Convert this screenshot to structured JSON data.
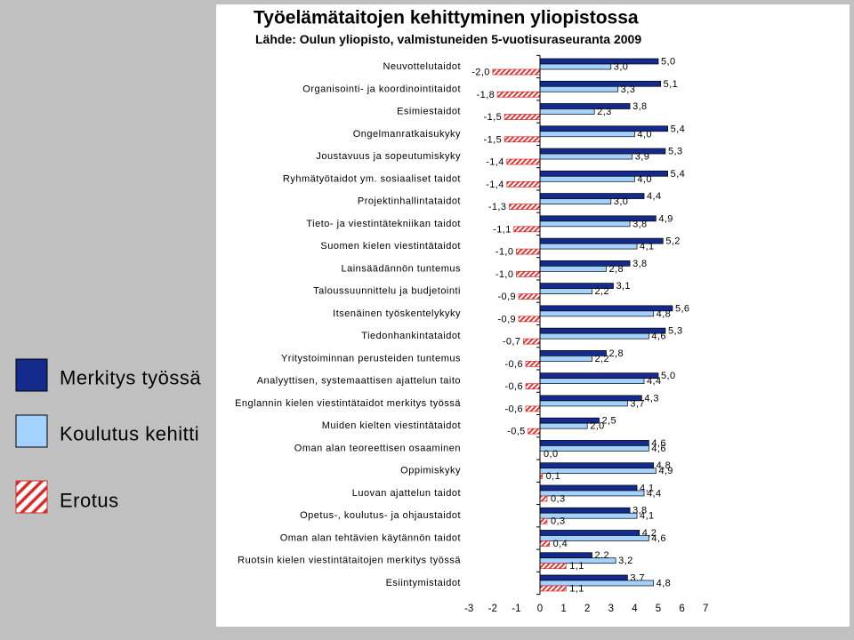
{
  "chart_data": {
    "type": "bar",
    "orientation": "horizontal",
    "title": "Työelämätaitojen kehittyminen yliopistossa",
    "subtitle": "Lähde: Oulun yliopisto, valmistuneiden 5-vuotisuraseuranta 2009",
    "categories": [
      "Neuvottelutaidot",
      "Organisointi- ja koordinointitaidot",
      "Esimiestaidot",
      "Ongelmanratkaisukyky",
      "Joustavuus ja sopeutumiskyky",
      "Ryhmätyötaidot ym. sosiaaliset taidot",
      "Projektinhallintataidot",
      "Tieto- ja viestintätekniikan taidot",
      "Suomen kielen viestintätaidot",
      "Lainsäädännön tuntemus",
      "Taloussuunnittelu ja budjetointi",
      "Itsenäinen työskentelykyky",
      "Tiedonhankintataidot",
      "Yritystoiminnan perusteiden tuntemus",
      "Analyyttisen, systemaattisen ajattelun taito",
      "Englannin kielen viestintätaidot merkitys työssä",
      "Muiden kielten viestintätaidot",
      "Oman alan teoreettisen osaaminen",
      "Oppimiskyky",
      "Luovan ajattelun taidot",
      "Opetus-, koulutus- ja ohjaustaidot",
      "Oman alan tehtävien käytännön taidot",
      "Ruotsin kielen viestintätaitojen merkitys työssä",
      "Esiintymistaidot"
    ],
    "series": [
      {
        "name": "Merkitys työssä",
        "color": "#142a8c",
        "values": [
          5.0,
          5.1,
          3.8,
          5.4,
          5.3,
          5.4,
          4.4,
          4.9,
          5.2,
          3.8,
          3.1,
          5.6,
          5.3,
          2.8,
          5.0,
          4.3,
          2.5,
          4.6,
          4.8,
          4.1,
          3.8,
          4.2,
          2.2,
          3.7
        ]
      },
      {
        "name": "Koulutus kehitti",
        "color": "#a4d2ff",
        "values": [
          3.0,
          3.3,
          2.3,
          4.0,
          3.9,
          4.0,
          3.0,
          3.8,
          4.1,
          2.8,
          2.2,
          4.8,
          4.6,
          2.2,
          4.4,
          3.7,
          2.0,
          4.6,
          4.9,
          4.4,
          4.1,
          4.6,
          3.2,
          4.8
        ]
      },
      {
        "name": "Erotus",
        "color": "#d42b2b",
        "hatched": true,
        "values": [
          -2.0,
          -1.8,
          -1.5,
          -1.5,
          -1.4,
          -1.4,
          -1.3,
          -1.1,
          -1.0,
          -1.0,
          -0.9,
          -0.9,
          -0.7,
          -0.6,
          -0.6,
          -0.6,
          -0.5,
          0.0,
          0.1,
          0.3,
          0.3,
          0.4,
          1.1,
          1.1
        ]
      }
    ],
    "xlim": [
      -3,
      7
    ],
    "xticks": [
      -3,
      -2,
      -1,
      0,
      1,
      2,
      3,
      4,
      5,
      6,
      7
    ],
    "legend_position": "left",
    "grid": false
  }
}
